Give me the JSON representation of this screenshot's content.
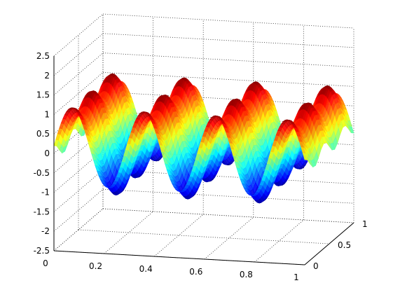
{
  "chart_data": {
    "type": "surface",
    "title": "",
    "xlabel": "",
    "ylabel": "",
    "zlabel": "",
    "colormap": "jet",
    "grid": true,
    "shading": "interp",
    "xlim": [
      0,
      1
    ],
    "ylim": [
      0,
      1
    ],
    "zlim": [
      -2.5,
      2.5
    ],
    "x_ticks": [
      "0",
      "0.2",
      "0.4",
      "0.6",
      "0.8",
      "1"
    ],
    "y_ticks": [
      "0",
      "0.5",
      "1"
    ],
    "z_ticks": [
      "-2.5",
      "-2",
      "-1.5",
      "-1",
      "-0.5",
      "0",
      "0.5",
      "1",
      "1.5",
      "2",
      "2.5"
    ],
    "surface": {
      "description_values": {
        "x_cycles": 3.5,
        "amplitude": 1.0,
        "y_ripple_amplitude": 0.2,
        "y_ripple_cycles": 2.5,
        "z_min": -1.2,
        "z_max": 1.2
      }
    }
  }
}
